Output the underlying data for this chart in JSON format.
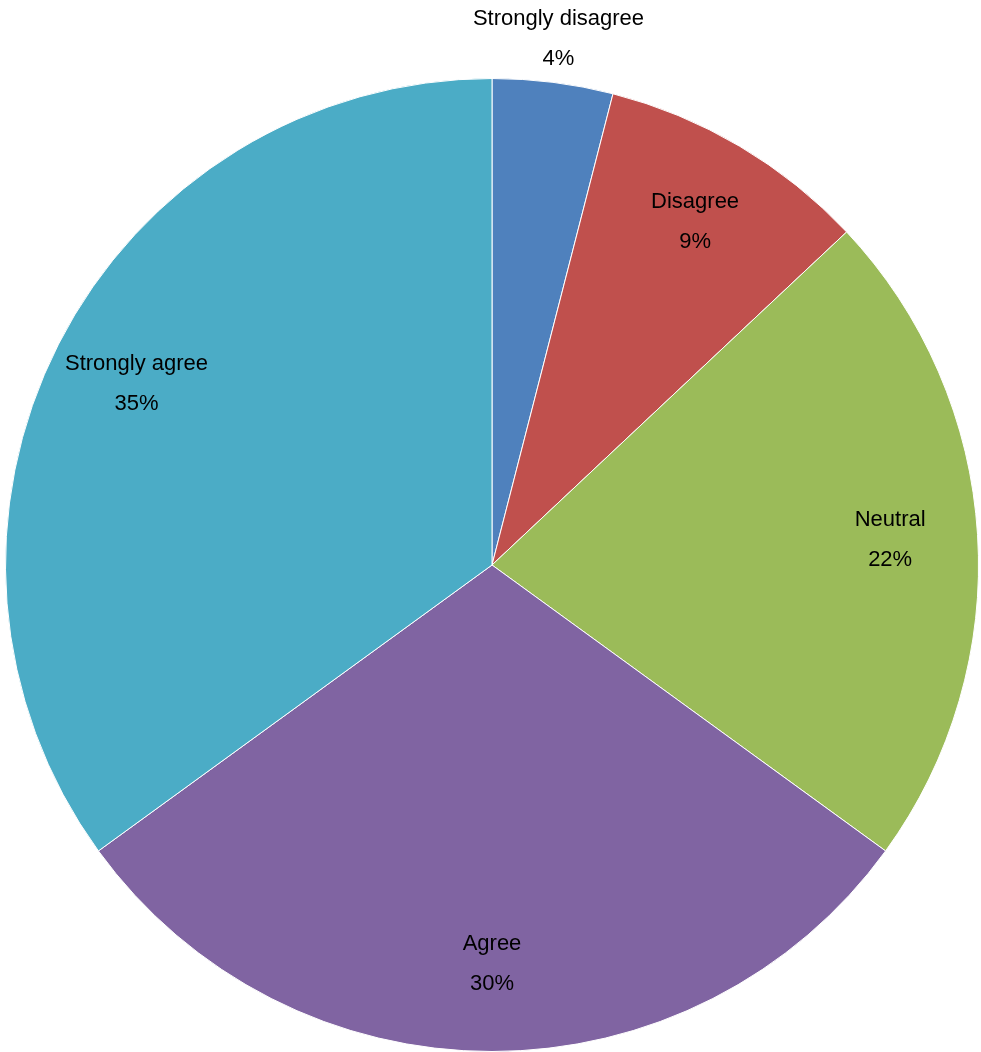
{
  "chart_data": {
    "type": "pie",
    "categories": [
      "Strongly disagree",
      "Disagree",
      "Neutral",
      "Agree",
      "Strongly agree"
    ],
    "values": [
      4,
      9,
      22,
      30,
      35
    ],
    "colors": [
      "#4f81bd",
      "#c0504d",
      "#9bbb59",
      "#8064a2",
      "#4bacc6"
    ],
    "value_labels": [
      "4%",
      "9%",
      "22%",
      "30%",
      "35%"
    ]
  }
}
